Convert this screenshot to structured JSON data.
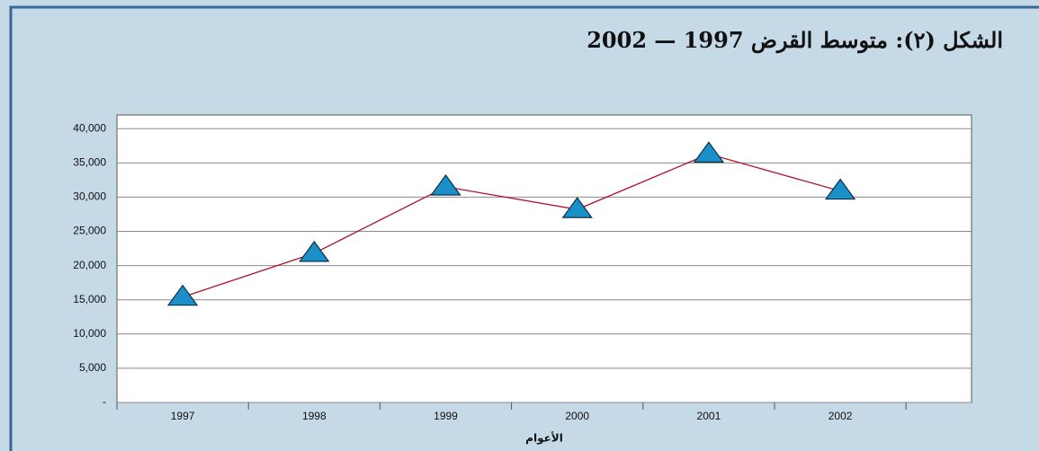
{
  "chart_data": {
    "type": "line",
    "title": "الشكل (٢): متوسط القرض 1997 — 2002",
    "x_label": "الأعوام",
    "categories": [
      "1997",
      "1998",
      "1999",
      "2000",
      "2001",
      "2002"
    ],
    "series": [
      {
        "name": "متوسط القرض",
        "color": "#b0102c",
        "marker_color": "#1a8fc8",
        "values": [
          15400,
          21800,
          31500,
          28200,
          36300,
          30900
        ]
      }
    ],
    "ylim": [
      0,
      42000
    ],
    "yticks": [
      {
        "value": 0,
        "label": "-"
      },
      {
        "value": 5000,
        "label": "5,000"
      },
      {
        "value": 10000,
        "label": "10,000"
      },
      {
        "value": 15000,
        "label": "15,000"
      },
      {
        "value": 20000,
        "label": "20,000"
      },
      {
        "value": 25000,
        "label": "25,000"
      },
      {
        "value": 30000,
        "label": "30,000"
      },
      {
        "value": 35000,
        "label": "35,000"
      },
      {
        "value": 40000,
        "label": "40,000"
      }
    ],
    "grid": true
  }
}
